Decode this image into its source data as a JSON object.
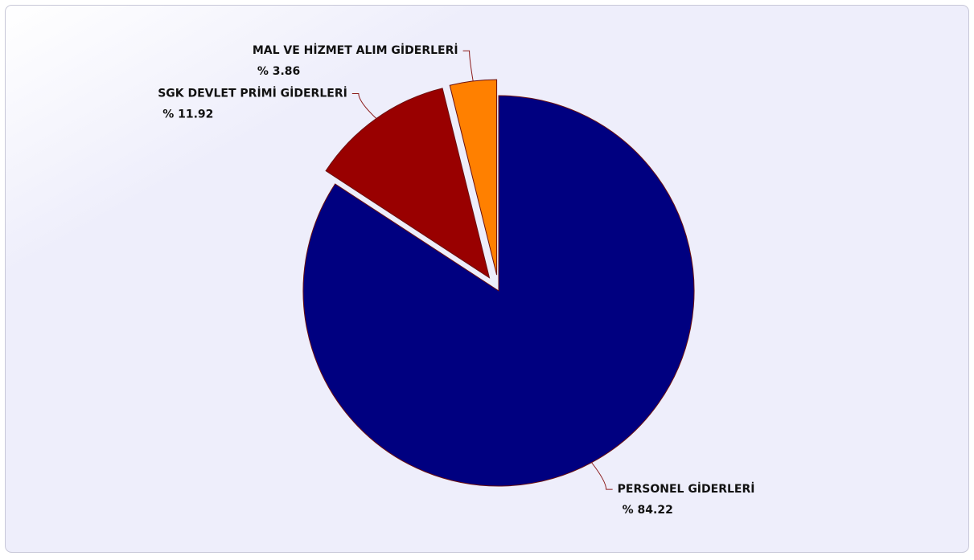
{
  "chart_data": {
    "type": "pie",
    "categories": [
      "PERSONEL GİDERLERİ",
      "SGK DEVLET PRİMİ GİDERLERİ",
      "MAL VE HİZMET ALIM GİDERLERİ"
    ],
    "values": [
      84.22,
      11.92,
      3.86
    ],
    "value_labels": [
      "% 84.22",
      "% 11.92",
      "% 3.86"
    ],
    "colors": [
      "#000080",
      "#990000",
      "#ff8000"
    ],
    "explode": [
      false,
      true,
      true
    ]
  }
}
